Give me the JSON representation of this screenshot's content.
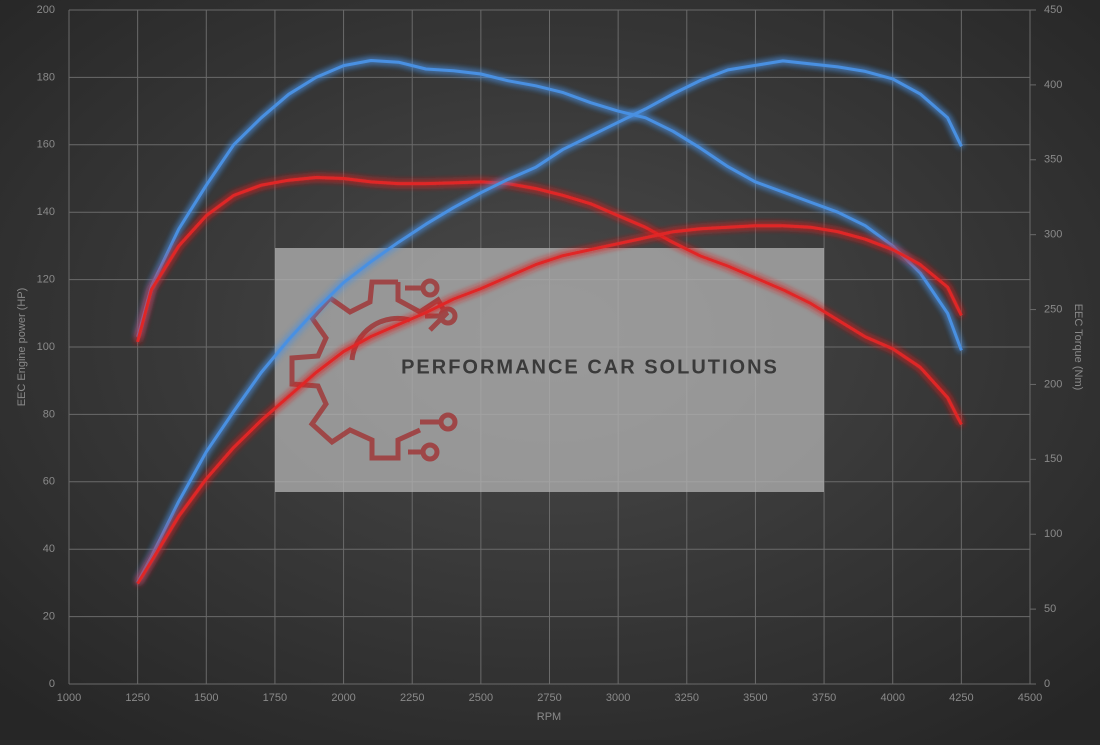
{
  "chart_data": {
    "type": "line",
    "x_label": "RPM",
    "y_label": "EEC Engine power (HP)",
    "y2_label": "EEC Torque (Nm)",
    "watermark": "PERFORMANCE CAR SOLUTIONS",
    "x": [
      1250,
      1300,
      1400,
      1500,
      1600,
      1700,
      1800,
      1900,
      2000,
      2100,
      2200,
      2300,
      2400,
      2500,
      2600,
      2700,
      2800,
      2900,
      3000,
      3100,
      3200,
      3300,
      3400,
      3500,
      3600,
      3700,
      3800,
      3900,
      4000,
      4100,
      4200,
      4250
    ],
    "xlim": [
      1000,
      4500
    ],
    "xticks": [
      1000,
      1250,
      1500,
      1750,
      2000,
      2250,
      2500,
      2750,
      3000,
      3250,
      3500,
      3750,
      4000,
      4250,
      4500
    ],
    "ylim": [
      0,
      200
    ],
    "yticks": [
      0,
      20,
      40,
      60,
      80,
      100,
      120,
      140,
      160,
      180,
      200
    ],
    "y2lim": [
      0,
      450
    ],
    "y2ticks": [
      0,
      50,
      100,
      150,
      200,
      250,
      300,
      350,
      400,
      450
    ],
    "grid": true,
    "series": [
      {
        "color": "#4a90e2",
        "values": [
          103,
          118,
          135,
          148,
          160,
          168,
          175,
          180,
          183.5,
          185,
          184.5,
          182.5,
          182,
          181,
          179,
          177.5,
          175.5,
          172.5,
          170,
          168,
          164,
          159,
          153.5,
          149,
          146,
          143,
          140,
          136,
          130,
          122,
          110,
          99
        ]
      },
      {
        "color": "#e02828",
        "values": [
          101.5,
          117,
          130,
          139,
          145,
          148,
          149.5,
          150.3,
          150,
          149,
          148.5,
          148.5,
          148.7,
          149,
          148.5,
          147,
          145,
          142.5,
          139,
          135.5,
          131,
          127,
          124,
          120.5,
          117,
          113,
          108,
          103,
          99.5,
          94,
          85,
          77
        ]
      },
      {
        "color": "#4a90e2",
        "axis": "y2",
        "values": [
          68,
          85,
          122,
          155,
          182,
          208,
          230,
          250,
          268,
          282,
          295,
          307,
          318,
          328,
          337,
          345,
          357,
          366,
          375,
          384,
          394,
          403,
          410,
          413,
          416,
          414,
          412,
          409,
          404,
          394,
          378,
          359
        ]
      },
      {
        "color": "#e02828",
        "axis": "y2",
        "values": [
          67,
          82,
          112,
          137,
          158,
          176,
          192,
          208,
          222,
          232,
          240,
          248,
          257,
          264,
          272,
          280,
          286,
          290,
          294,
          298,
          302,
          304,
          305,
          306,
          306,
          305,
          302,
          297,
          290,
          280,
          265,
          246
        ]
      }
    ]
  }
}
